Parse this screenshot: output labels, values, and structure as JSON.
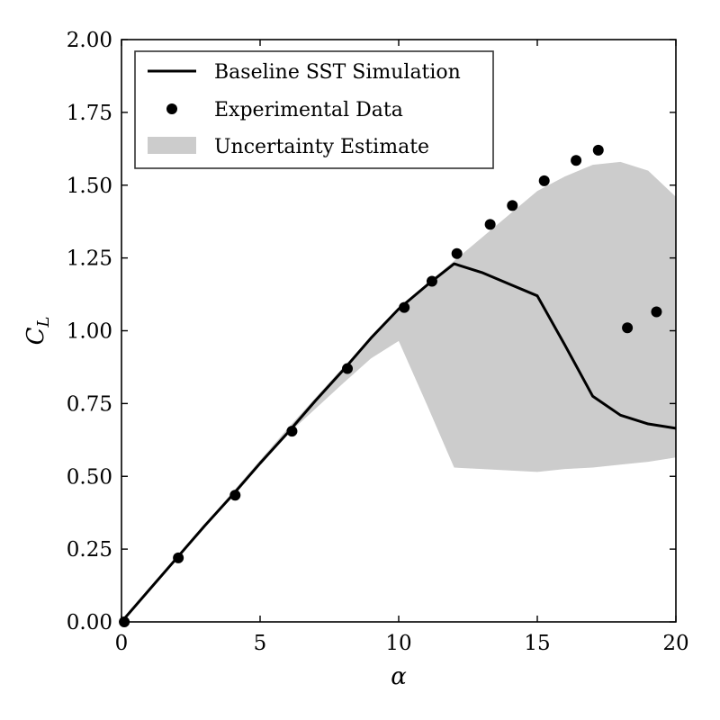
{
  "chart_data": {
    "type": "line",
    "xlabel": "α",
    "ylabel": "C",
    "ylabel_subscript": "L",
    "xlim": [
      0,
      20
    ],
    "ylim": [
      0,
      2
    ],
    "xticks": [
      0,
      5,
      10,
      15,
      20
    ],
    "yticks": [
      0,
      0.25,
      0.5,
      0.75,
      1.0,
      1.25,
      1.5,
      1.75,
      2.0
    ],
    "xtick_labels": [
      "0",
      "5",
      "10",
      "15",
      "20"
    ],
    "ytick_labels": [
      "0.00",
      "0.25",
      "0.50",
      "0.75",
      "1.00",
      "1.25",
      "1.50",
      "1.75",
      "2.00"
    ],
    "grid": false,
    "legend_position": "top-left",
    "series": [
      {
        "name": "Baseline SST Simulation",
        "kind": "line",
        "color": "#000000",
        "x": [
          0,
          1,
          2,
          3,
          4,
          5,
          6,
          7,
          8,
          9,
          10,
          11,
          12,
          13,
          14,
          15,
          16,
          17,
          18,
          19,
          20
        ],
        "y": [
          0.0,
          0.11,
          0.22,
          0.33,
          0.435,
          0.545,
          0.65,
          0.76,
          0.865,
          0.975,
          1.075,
          1.155,
          1.23,
          1.2,
          1.16,
          1.12,
          0.95,
          0.775,
          0.71,
          0.68,
          0.665
        ]
      },
      {
        "name": "Experimental Data",
        "kind": "scatter",
        "color": "#000000",
        "x": [
          0.1,
          2.05,
          4.1,
          6.15,
          8.15,
          10.2,
          11.2,
          12.1,
          13.3,
          14.1,
          15.25,
          16.4,
          17.2,
          18.25,
          19.3
        ],
        "y": [
          0.0,
          0.22,
          0.435,
          0.655,
          0.87,
          1.08,
          1.17,
          1.265,
          1.365,
          1.43,
          1.515,
          1.585,
          1.62,
          1.01,
          1.065
        ]
      },
      {
        "name": "Uncertainty Estimate",
        "kind": "band",
        "color": "#cccccc",
        "x": [
          0,
          2,
          4,
          6,
          8,
          9,
          10,
          11,
          12,
          13,
          14,
          15,
          16,
          17,
          18,
          19,
          20
        ],
        "upper": [
          0.0,
          0.225,
          0.445,
          0.665,
          0.875,
          0.975,
          1.08,
          1.16,
          1.24,
          1.32,
          1.4,
          1.48,
          1.53,
          1.57,
          1.58,
          1.55,
          1.46
        ],
        "lower": [
          0.0,
          0.215,
          0.43,
          0.645,
          0.82,
          0.905,
          0.965,
          0.75,
          0.53,
          0.525,
          0.52,
          0.515,
          0.525,
          0.53,
          0.54,
          0.55,
          0.565
        ]
      }
    ]
  }
}
